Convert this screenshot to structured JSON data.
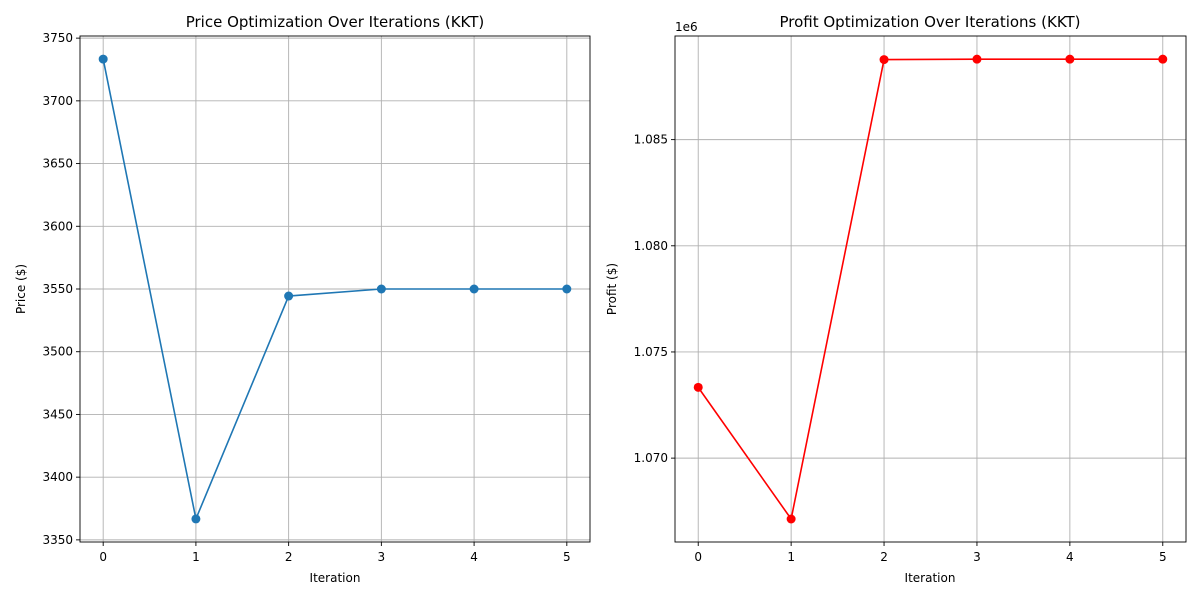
{
  "chart_data": [
    {
      "type": "line",
      "title": "Price Optimization Over Iterations (KKT)",
      "xlabel": "Iteration",
      "ylabel": "Price ($)",
      "x": [
        0,
        1,
        2,
        3,
        4,
        5
      ],
      "series": [
        {
          "values": [
            3733.3,
            3366.7,
            3544.4,
            3550.0,
            3550.0,
            3550.0
          ],
          "color": "#1f77b4",
          "marker": "circle"
        }
      ],
      "xticks": [
        0,
        1,
        2,
        3,
        4,
        5
      ],
      "yticks": [
        3350,
        3400,
        3450,
        3500,
        3550,
        3600,
        3650,
        3700,
        3750
      ],
      "ytick_labels": [
        "3350",
        "3400",
        "3450",
        "3500",
        "3550",
        "3600",
        "3650",
        "3700",
        "3750"
      ],
      "xlim": [
        -0.25,
        5.25
      ],
      "ylim": [
        3348.3,
        3751.7
      ],
      "offset_text": "",
      "grid": true
    },
    {
      "type": "line",
      "title": "Profit Optimization Over Iterations (KKT)",
      "xlabel": "Iteration",
      "ylabel": "Profit ($)",
      "x": [
        0,
        1,
        2,
        3,
        4,
        5
      ],
      "series": [
        {
          "values": [
            1073333,
            1067133,
            1088770,
            1088790,
            1088790,
            1088790
          ],
          "color": "#ff0000",
          "marker": "circle"
        }
      ],
      "xticks": [
        0,
        1,
        2,
        3,
        4,
        5
      ],
      "yticks": [
        1070000,
        1075000,
        1080000,
        1085000
      ],
      "ytick_labels": [
        "1.070",
        "1.075",
        "1.080",
        "1.085"
      ],
      "xlim": [
        -0.25,
        5.25
      ],
      "ylim": [
        1066050,
        1089880
      ],
      "offset_text": "1e6",
      "grid": true
    }
  ]
}
